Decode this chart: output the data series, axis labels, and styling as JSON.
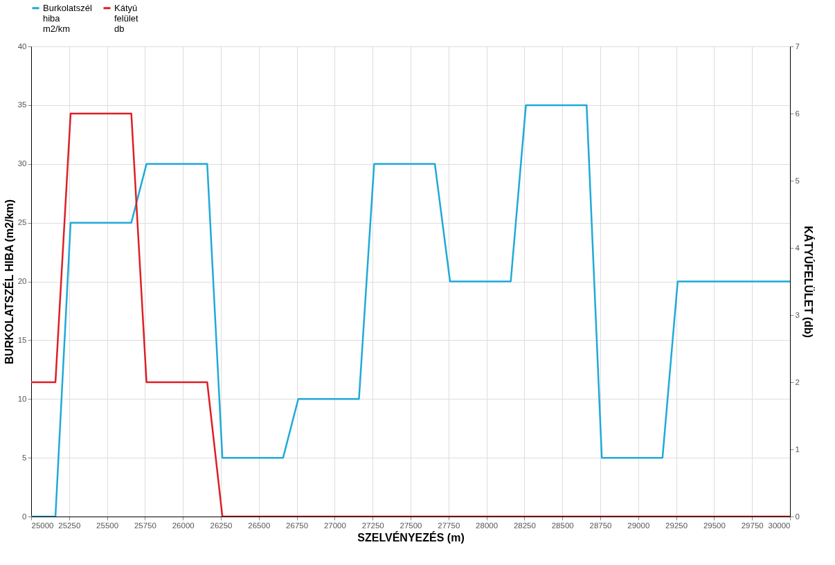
{
  "chart_data": {
    "type": "line",
    "xlabel": "SZELVÉNYEZÉS (m)",
    "ylabel": "BURKOLATSZÉL HIBA (m2/km)",
    "y2label": "KÁTYÚFELÜLET (db)",
    "xlim": [
      25000,
      30000
    ],
    "xticks": [
      25000,
      25250,
      25500,
      25750,
      26000,
      26250,
      26500,
      26750,
      27000,
      27250,
      27500,
      27750,
      28000,
      28250,
      28500,
      28750,
      29000,
      29250,
      29500,
      29750,
      30000
    ],
    "ylim": [
      0,
      40
    ],
    "yticks": [
      0,
      5,
      10,
      15,
      20,
      25,
      30,
      35,
      40
    ],
    "y2lim": [
      0,
      7
    ],
    "y2ticks": [
      0,
      1,
      2,
      3,
      4,
      5,
      6,
      7
    ],
    "grid": true,
    "legend": "top",
    "marker": "none",
    "line_style": "solid",
    "series": [
      {
        "name": "Burkolatszél hiba m2/km",
        "color": "#1eaad8",
        "x": [
          25000,
          25160,
          25260,
          25660,
          25760,
          26160,
          26260,
          26660,
          26760,
          27160,
          27260,
          27660,
          27760,
          28160,
          28260,
          28660,
          28760,
          29160,
          29260,
          30000
        ],
        "values": [
          0,
          0,
          25,
          25,
          30,
          30,
          5,
          5,
          10,
          10,
          30,
          30,
          20,
          20,
          35,
          35,
          5,
          5,
          20,
          20
        ]
      },
      {
        "name": "Kátyú felület db",
        "color": "#dd1f26",
        "axis": "y2",
        "x": [
          25000,
          25160,
          25260,
          25660,
          25760,
          26160,
          26260,
          30000
        ],
        "values": [
          2,
          2,
          6,
          6,
          2,
          2,
          0,
          0
        ]
      }
    ]
  }
}
